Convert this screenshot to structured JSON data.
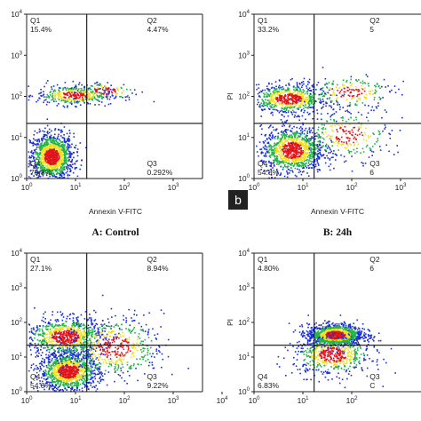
{
  "chart_data": [
    {
      "type": "scatter",
      "panel_id": "A",
      "title": "A: Control",
      "xlabel": "Annexin V-FITC",
      "ylabel": "",
      "xscale": "log",
      "yscale": "log",
      "xlim": [
        1,
        10000
      ],
      "ylim": [
        1,
        10000
      ],
      "x_ticks": [
        "10^0",
        "10^1",
        "10^2",
        "10^3"
      ],
      "y_ticks": [
        "10^0",
        "10^1",
        "10^2",
        "10^3",
        "10^4"
      ],
      "gate": {
        "x": 17,
        "y": 22
      },
      "quadrants": [
        {
          "name": "Q1",
          "value": "15.4%",
          "corner": "top-left"
        },
        {
          "name": "Q2",
          "value": "4.47%",
          "corner": "top-right"
        },
        {
          "name": "Q3",
          "value": "0.292%",
          "corner": "bottom-right"
        },
        {
          "name": "Q4",
          "value": "79.8%",
          "corner": "bottom-left"
        }
      ],
      "clusters": [
        {
          "cx": 3.2,
          "cy": 3.5,
          "sx": 0.22,
          "sy": 0.28,
          "n": 1300
        },
        {
          "cx": 9,
          "cy": 110,
          "sx": 0.38,
          "sy": 0.12,
          "n": 420
        },
        {
          "cx": 40,
          "cy": 140,
          "sx": 0.35,
          "sy": 0.12,
          "n": 110
        }
      ]
    },
    {
      "type": "scatter",
      "panel_id": "B",
      "title": "B: 24h",
      "xlabel": "Annexin V-FITC",
      "ylabel": "PI",
      "xscale": "log",
      "yscale": "log",
      "xlim": [
        1,
        10000
      ],
      "ylim": [
        1,
        10000
      ],
      "x_ticks": [
        "10^0",
        "10^1",
        "10^2",
        "10^3"
      ],
      "y_ticks": [
        "10^0",
        "10^1",
        "10^2",
        "10^3",
        "10^4"
      ],
      "gate": {
        "x": 17,
        "y": 22
      },
      "quadrants": [
        {
          "name": "Q1",
          "value": "33.2%",
          "corner": "top-left"
        },
        {
          "name": "Q2",
          "value": "5",
          "corner": "top-right"
        },
        {
          "name": "Q3",
          "value": "6",
          "corner": "bottom-right"
        },
        {
          "name": "Q4",
          "value": "54.8%",
          "corner": "bottom-left"
        }
      ],
      "clusters": [
        {
          "cx": 6,
          "cy": 5,
          "sx": 0.32,
          "sy": 0.28,
          "n": 1100
        },
        {
          "cx": 5,
          "cy": 90,
          "sx": 0.38,
          "sy": 0.18,
          "n": 700
        },
        {
          "cx": 80,
          "cy": 12,
          "sx": 0.45,
          "sy": 0.3,
          "n": 260
        },
        {
          "cx": 90,
          "cy": 130,
          "sx": 0.45,
          "sy": 0.2,
          "n": 200
        }
      ]
    },
    {
      "type": "scatter",
      "panel_id": "C",
      "title": "",
      "xlabel": "",
      "ylabel": "",
      "xscale": "log",
      "yscale": "log",
      "xlim": [
        1,
        10000
      ],
      "ylim": [
        1,
        10000
      ],
      "x_ticks": [
        "10^0",
        "10^1",
        "10^2",
        "10^3",
        "10^4"
      ],
      "y_ticks": [
        "10^0",
        "10^1",
        "10^2",
        "10^3",
        "10^4"
      ],
      "gate": {
        "x": 17,
        "y": 22
      },
      "quadrants": [
        {
          "name": "Q1",
          "value": "27.1%",
          "corner": "top-left"
        },
        {
          "name": "Q2",
          "value": "8.94%",
          "corner": "top-right"
        },
        {
          "name": "Q3",
          "value": "9.22%",
          "corner": "bottom-right"
        },
        {
          "name": "Q4",
          "value": "54.8%",
          "corner": "bottom-left"
        }
      ],
      "clusters": [
        {
          "cx": 7,
          "cy": 4,
          "sx": 0.3,
          "sy": 0.28,
          "n": 1200
        },
        {
          "cx": 6,
          "cy": 40,
          "sx": 0.4,
          "sy": 0.28,
          "n": 900
        },
        {
          "cx": 60,
          "cy": 20,
          "sx": 0.5,
          "sy": 0.45,
          "n": 500
        }
      ]
    },
    {
      "type": "scatter",
      "panel_id": "D",
      "title": "",
      "xlabel": "",
      "ylabel": "PI",
      "xscale": "log",
      "yscale": "log",
      "xlim": [
        1,
        10000
      ],
      "ylim": [
        1,
        10000
      ],
      "x_ticks": [
        "10^0",
        "10^1",
        "10^2"
      ],
      "y_ticks": [
        "10^0",
        "10^1",
        "10^2",
        "10^3",
        "10^4"
      ],
      "gate": {
        "x": 17,
        "y": 22
      },
      "quadrants": [
        {
          "name": "Q1",
          "value": "4.80%",
          "corner": "top-left"
        },
        {
          "name": "Q2",
          "value": "6",
          "corner": "top-right"
        },
        {
          "name": "Q3",
          "value": "C",
          "corner": "bottom-right"
        },
        {
          "name": "Q4",
          "value": "6.83%",
          "corner": "bottom-left"
        }
      ],
      "clusters": [
        {
          "cx": 45,
          "cy": 45,
          "sx": 0.28,
          "sy": 0.16,
          "n": 1200
        },
        {
          "cx": 40,
          "cy": 12,
          "sx": 0.4,
          "sy": 0.3,
          "n": 600
        }
      ]
    }
  ],
  "panel_tag": "b",
  "colors": {
    "cold": "#1a2fd6",
    "mid": "#22b24a",
    "warm": "#f0e020",
    "hot": "#e0151b",
    "label_box": "#222222"
  }
}
